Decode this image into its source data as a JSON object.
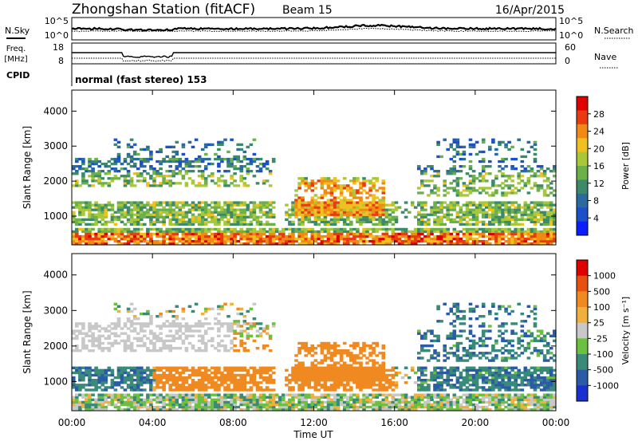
{
  "header": {
    "station": "Zhongshan Station (fitACF)",
    "beam": "Beam 15",
    "date": "16/Apr/2015"
  },
  "top_panels": {
    "nsky_label": "N.Sky",
    "nsearch_label": "N.Search",
    "noise_ticks_left": [
      "10^5",
      "10^0"
    ],
    "noise_ticks_right": [
      "10^5",
      "10^0"
    ],
    "freq_label_line1": "Freq.",
    "freq_label_line2": "[MHz]",
    "freq_ticks": [
      "18",
      "8"
    ],
    "nave_label": "Nave",
    "nave_ticks": [
      "60",
      "0"
    ],
    "cpid_label": "CPID",
    "cpid_text": "normal (fast stereo) 153"
  },
  "chart_data": [
    {
      "type": "heatmap",
      "title": "",
      "xlabel": "Time UT",
      "ylabel": "Slant Range [km]",
      "x_ticks": [
        "00:00",
        "04:00",
        "08:00",
        "12:00",
        "16:00",
        "20:00",
        "00:00"
      ],
      "xlim_hours": [
        0,
        24
      ],
      "y_ticks": [
        1000,
        2000,
        3000,
        4000
      ],
      "ylim_km": [
        180,
        4600
      ],
      "colorbar": {
        "label": "Power [dB]",
        "ticks": [
          4,
          8,
          12,
          16,
          20,
          24,
          28
        ],
        "range": [
          0,
          32
        ],
        "colors": [
          "#0a1eff",
          "#1c50c8",
          "#2a6aa0",
          "#3d8a6a",
          "#6cb04a",
          "#a8c83a",
          "#f0c020",
          "#f08a14",
          "#e83c10",
          "#e00000"
        ]
      }
    },
    {
      "type": "heatmap",
      "title": "",
      "xlabel": "Time UT",
      "ylabel": "Slant Range [km]",
      "x_ticks": [
        "00:00",
        "04:00",
        "08:00",
        "12:00",
        "16:00",
        "20:00",
        "00:00"
      ],
      "xlim_hours": [
        0,
        24
      ],
      "y_ticks": [
        1000,
        2000,
        3000,
        4000
      ],
      "ylim_km": [
        180,
        4600
      ],
      "colorbar": {
        "label": "Velocity [m s⁻¹]",
        "ticks": [
          "1000",
          "500",
          "100",
          "25",
          "-25",
          "-100",
          "-500",
          "-1000"
        ],
        "colors": [
          "#1a2fd0",
          "#2a5aa8",
          "#3a8a7a",
          "#6cc040",
          "#c8c8c8",
          "#f0b040",
          "#f08a20",
          "#e85010",
          "#e00000"
        ]
      }
    }
  ]
}
